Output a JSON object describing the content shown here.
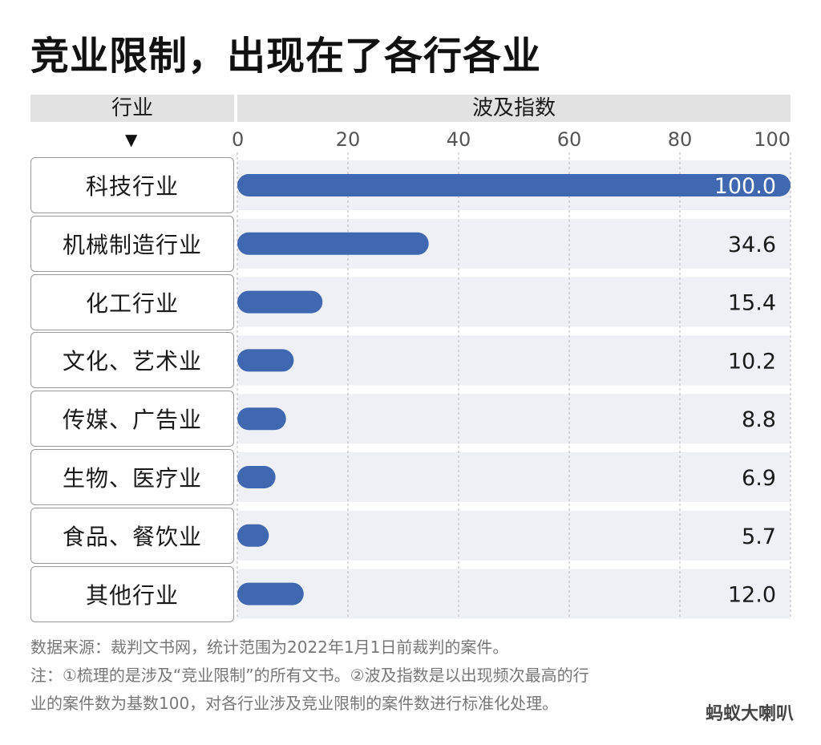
{
  "title": "竞业限制，出现在了各行各业",
  "header": {
    "category_label": "行业",
    "value_label": "波及指数",
    "arrow": "▼"
  },
  "chart_data": {
    "type": "bar",
    "orientation": "horizontal",
    "categories": [
      "科技行业",
      "机械制造行业",
      "化工行业",
      "文化、艺术业",
      "传媒、广告业",
      "生物、医疗业",
      "食品、餐饮业",
      "其他行业"
    ],
    "values": [
      100.0,
      34.6,
      15.4,
      10.2,
      8.8,
      6.9,
      5.7,
      12.0
    ],
    "value_labels": [
      "100.0",
      "34.6",
      "15.4",
      "10.2",
      "8.8",
      "6.9",
      "5.7",
      "12.0"
    ],
    "xlim": [
      0,
      100
    ],
    "xticks": [
      "0",
      "20",
      "40",
      "60",
      "80",
      "100"
    ],
    "grid": true,
    "bar_color": "#3f68b0",
    "row_band_color": "#eef0f6"
  },
  "footnote": {
    "source": "数据来源：裁判文书网，统计范围为2022年1月1日前裁判的案件。",
    "note_line1": "注：①梳理的是涉及“竞业限制”的所有文书。②波及指数是以出现频次最高的行",
    "note_line2": "业的案件数为基数100，对各行业涉及竞业限制的案件数进行标准化处理。"
  },
  "watermark": "蚂蚁大喇叭"
}
